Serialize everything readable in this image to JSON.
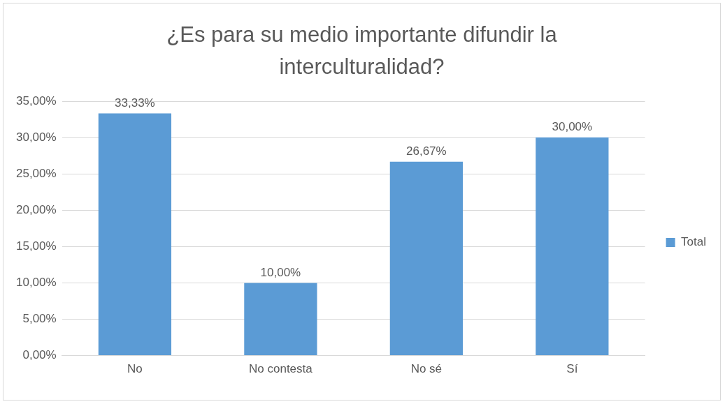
{
  "chart_data": {
    "type": "bar",
    "title": "¿Es para su medio importante difundir la interculturalidad?",
    "categories": [
      "No",
      "No contesta",
      "No sé",
      "Sí"
    ],
    "series": [
      {
        "name": "Total",
        "color": "#5b9bd5",
        "values": [
          33.33,
          10,
          26.67,
          30
        ],
        "value_labels": [
          "33,33%",
          "10,00%",
          "26,67%",
          "30,00%"
        ]
      }
    ],
    "ylim": [
      0,
      35
    ],
    "yticks": [
      {
        "value": 0,
        "label": "0,00%"
      },
      {
        "value": 5,
        "label": "5,00%"
      },
      {
        "value": 10,
        "label": "10,00%"
      },
      {
        "value": 15,
        "label": "15,00%"
      },
      {
        "value": 20,
        "label": "20,00%"
      },
      {
        "value": 25,
        "label": "25,00%"
      },
      {
        "value": 30,
        "label": "30,00%"
      },
      {
        "value": 35,
        "label": "35,00%"
      }
    ],
    "grid": "y",
    "legend": "right"
  }
}
